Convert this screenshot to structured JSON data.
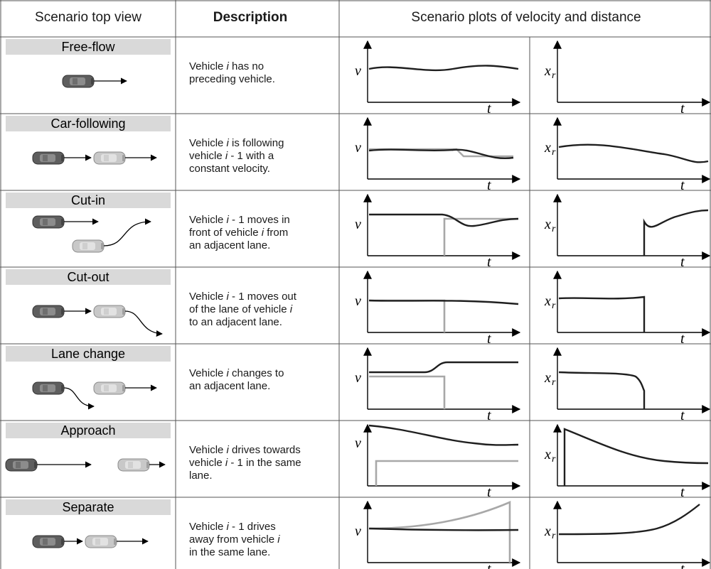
{
  "header": {
    "col1": "Scenario top view",
    "col2": "Description",
    "col3": "Scenario plots of velocity and distance"
  },
  "axis_labels": {
    "velocity": "v",
    "distance": "x",
    "distance_sub": "r",
    "time": "t"
  },
  "legend_colors": {
    "ego_vehicle": "#1f1f1f",
    "preceding_vehicle": "#a8a8a8"
  },
  "rows": [
    {
      "title": "Free-flow",
      "desc": [
        {
          "t": "Vehicle "
        },
        {
          "t": "i",
          "i": true
        },
        {
          "t": " has no"
        },
        {
          "br": true
        },
        {
          "t": "preceding vehicle."
        }
      ]
    },
    {
      "title": "Car-following",
      "desc": [
        {
          "t": "Vehicle "
        },
        {
          "t": "i",
          "i": true
        },
        {
          "t": " is following"
        },
        {
          "br": true
        },
        {
          "t": "vehicle "
        },
        {
          "t": "i",
          "i": true
        },
        {
          "t": " - 1 with a"
        },
        {
          "br": true
        },
        {
          "t": "constant velocity."
        }
      ]
    },
    {
      "title": "Cut-in",
      "desc": [
        {
          "t": "Vehicle "
        },
        {
          "t": "i",
          "i": true
        },
        {
          "t": " - 1 moves in"
        },
        {
          "br": true
        },
        {
          "t": "front of vehicle "
        },
        {
          "t": "i",
          "i": true
        },
        {
          "t": " from"
        },
        {
          "br": true
        },
        {
          "t": "an adjacent lane."
        }
      ]
    },
    {
      "title": "Cut-out",
      "desc": [
        {
          "t": "Vehicle "
        },
        {
          "t": "i",
          "i": true
        },
        {
          "t": " - 1 moves out"
        },
        {
          "br": true
        },
        {
          "t": "of the lane of vehicle "
        },
        {
          "t": "i",
          "i": true
        },
        {
          "br": true
        },
        {
          "t": "to an adjacent lane."
        }
      ]
    },
    {
      "title": "Lane change",
      "desc": [
        {
          "t": "Vehicle "
        },
        {
          "t": "i",
          "i": true
        },
        {
          "t": " changes to"
        },
        {
          "br": true
        },
        {
          "t": "an adjacent lane."
        }
      ]
    },
    {
      "title": "Approach",
      "desc": [
        {
          "t": "Vehicle "
        },
        {
          "t": "i",
          "i": true
        },
        {
          "t": " drives towards"
        },
        {
          "br": true
        },
        {
          "t": "vehicle "
        },
        {
          "t": "i",
          "i": true
        },
        {
          "t": " - 1 in the same"
        },
        {
          "br": true
        },
        {
          "t": "lane."
        }
      ]
    },
    {
      "title": "Separate",
      "desc": [
        {
          "t": "Vehicle "
        },
        {
          "t": "i",
          "i": true
        },
        {
          "t": " - 1 drives"
        },
        {
          "br": true
        },
        {
          "t": "away from vehicle "
        },
        {
          "t": "i",
          "i": true
        },
        {
          "br": true
        },
        {
          "t": "in the same lane."
        }
      ]
    }
  ]
}
